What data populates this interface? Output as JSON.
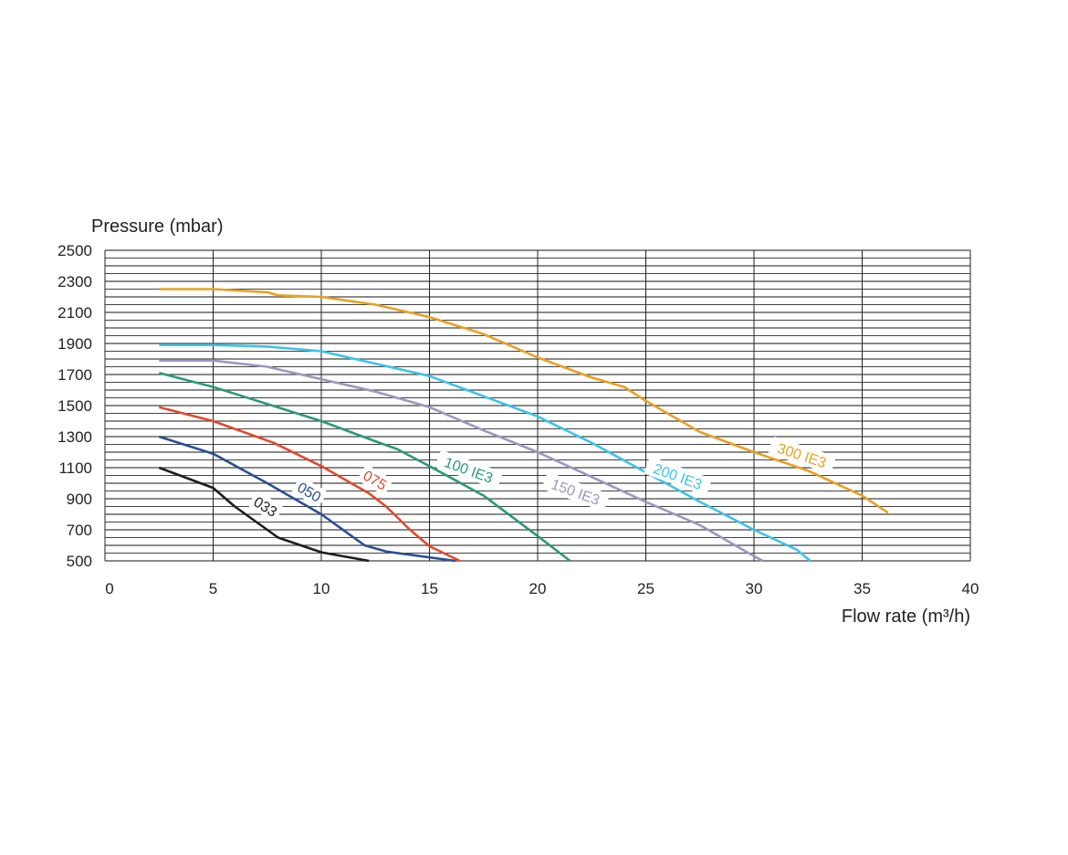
{
  "chart_data": {
    "type": "line",
    "title": "",
    "xlabel": "Flow rate (m³/h)",
    "ylabel": "Pressure (mbar)",
    "xlim": [
      0,
      40
    ],
    "ylim": [
      500,
      2500
    ],
    "x_ticks": [
      "0",
      "5",
      "10",
      "15",
      "20",
      "25",
      "30",
      "35",
      "40"
    ],
    "y_ticks": [
      "500",
      "700",
      "900",
      "1100",
      "1300",
      "1500",
      "1700",
      "1900",
      "2100",
      "2300",
      "2500"
    ],
    "grid": true,
    "series": [
      {
        "name": "033",
        "color": "#1e1e1e",
        "points": [
          [
            2.5,
            1100
          ],
          [
            5,
            970
          ],
          [
            6,
            850
          ],
          [
            7.5,
            700
          ],
          [
            8,
            650
          ],
          [
            10,
            555
          ],
          [
            12.2,
            500
          ]
        ]
      },
      {
        "name": "050",
        "color": "#2a4f96",
        "points": [
          [
            2.5,
            1300
          ],
          [
            5,
            1190
          ],
          [
            7.5,
            1000
          ],
          [
            10,
            800
          ],
          [
            12,
            600
          ],
          [
            13,
            560
          ],
          [
            16.2,
            500
          ]
        ]
      },
      {
        "name": "075",
        "color": "#e0492b",
        "points": [
          [
            2.5,
            1490
          ],
          [
            5,
            1400
          ],
          [
            7.8,
            1260
          ],
          [
            10,
            1110
          ],
          [
            12.2,
            935
          ],
          [
            13,
            850
          ],
          [
            14.1,
            700
          ],
          [
            15,
            594
          ],
          [
            16.4,
            500
          ]
        ]
      },
      {
        "name": "100 IE3",
        "color": "#2a9a7a",
        "points": [
          [
            2.5,
            1710
          ],
          [
            5,
            1620
          ],
          [
            7.5,
            1510
          ],
          [
            10,
            1400
          ],
          [
            12.5,
            1270
          ],
          [
            13.5,
            1220
          ],
          [
            15,
            1110
          ],
          [
            17.5,
            920
          ],
          [
            20,
            660
          ],
          [
            21.5,
            500
          ]
        ]
      },
      {
        "name": "150 IE3",
        "color": "#9b97c0",
        "points": [
          [
            2.5,
            1790
          ],
          [
            5,
            1790
          ],
          [
            7.5,
            1750
          ],
          [
            10,
            1670
          ],
          [
            12.5,
            1590
          ],
          [
            15,
            1490
          ],
          [
            17.5,
            1340
          ],
          [
            20,
            1200
          ],
          [
            22.5,
            1040
          ],
          [
            25,
            880
          ],
          [
            27.5,
            730
          ],
          [
            30,
            530
          ],
          [
            30.4,
            500
          ]
        ]
      },
      {
        "name": "200 IE3",
        "color": "#3cc4e6",
        "points": [
          [
            2.5,
            1890
          ],
          [
            5,
            1890
          ],
          [
            7.5,
            1880
          ],
          [
            10,
            1850
          ],
          [
            12.5,
            1770
          ],
          [
            15,
            1690
          ],
          [
            17.5,
            1560
          ],
          [
            20,
            1430
          ],
          [
            22.5,
            1260
          ],
          [
            25,
            1070
          ],
          [
            27.5,
            880
          ],
          [
            30,
            700
          ],
          [
            32,
            570
          ],
          [
            32.6,
            500
          ]
        ]
      },
      {
        "name": "300 IE3",
        "color": "#e8a023",
        "points": [
          [
            2.5,
            2250
          ],
          [
            5,
            2250
          ],
          [
            7.5,
            2230
          ],
          [
            8,
            2210
          ],
          [
            10,
            2200
          ],
          [
            12.5,
            2150
          ],
          [
            15,
            2070
          ],
          [
            17.5,
            1960
          ],
          [
            20,
            1810
          ],
          [
            22.5,
            1680
          ],
          [
            24,
            1620
          ],
          [
            25,
            1530
          ],
          [
            27.5,
            1330
          ],
          [
            30,
            1200
          ],
          [
            32.5,
            1080
          ],
          [
            35,
            920
          ],
          [
            36.2,
            810
          ]
        ]
      }
    ]
  }
}
